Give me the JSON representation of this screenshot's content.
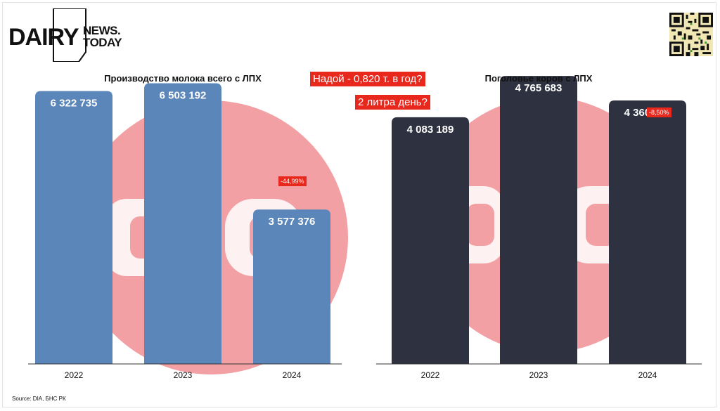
{
  "logo": {
    "word1": "DAIRY",
    "word2": "NEWS.",
    "word3": "TODAY"
  },
  "annotations": {
    "yield_question": "Надой - 0,820 т. в год?",
    "liters_question": "2 литра день?"
  },
  "source": "Source: DIA, БНС РК",
  "colors": {
    "milk_bar": "#5b86b9",
    "cow_bar": "#2e3140",
    "watermark": "#f2a0a4",
    "accent_red": "#e8281c"
  },
  "chart_data": [
    {
      "type": "bar",
      "title": "Производство молока всего с ЛПХ",
      "categories": [
        "2022",
        "2023",
        "2024"
      ],
      "values": [
        6322735,
        6503192,
        3577376
      ],
      "value_labels": [
        "6 322 735",
        "6 503 192",
        "3 577 376"
      ],
      "change_label": "-44,99%",
      "ylim": [
        0,
        7000000
      ],
      "grid": false,
      "legend": "none"
    },
    {
      "type": "bar",
      "title": "Поголовье коров с ЛПХ",
      "categories": [
        "2022",
        "2023",
        "2024"
      ],
      "values": [
        4083189,
        4765683,
        4360372
      ],
      "value_labels": [
        "4 083 189",
        "4 765 683",
        "4 360 372"
      ],
      "change_label": "-8,50%",
      "ylim": [
        0,
        5000000
      ],
      "grid": false,
      "legend": "none"
    }
  ]
}
